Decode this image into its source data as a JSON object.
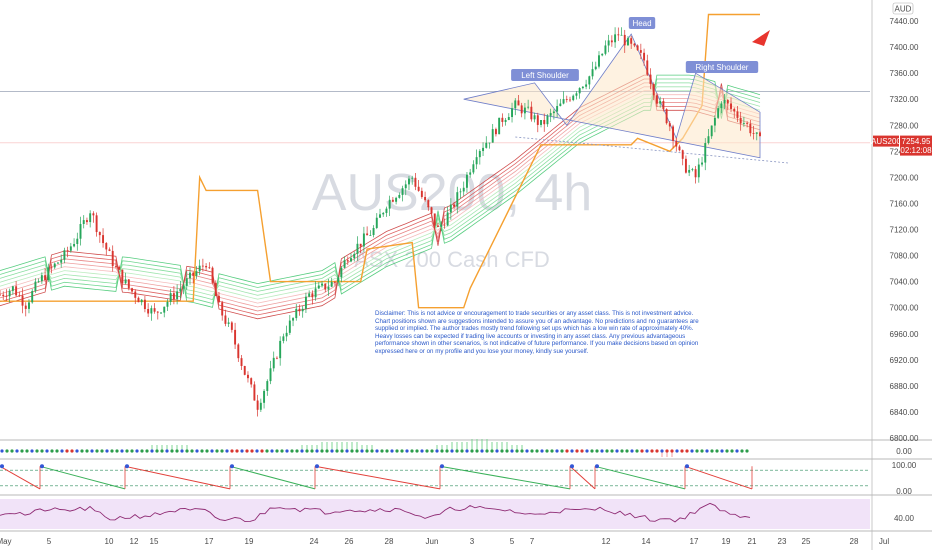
{
  "chart_data": [
    {
      "type": "candlestick",
      "symbol": "AUS200",
      "interval": "4h",
      "watermark_symbol": "AUS200, 4h",
      "watermark_name": "ASX 200 Cash CFD",
      "currency": "AUD",
      "ylim": [
        6800,
        7460
      ],
      "y_ticks": [
        "7440.00",
        "7400.00",
        "7360.00",
        "7320.00",
        "7280.00",
        "7240.00",
        "7200.00",
        "7160.00",
        "7120.00",
        "7080.00",
        "7040.00",
        "7000.00",
        "6960.00",
        "6920.00",
        "6880.00",
        "6840.00",
        "6800.00"
      ],
      "y_tick_values": [
        7440,
        7400,
        7360,
        7320,
        7280,
        7240,
        7200,
        7160,
        7120,
        7080,
        7040,
        7000,
        6960,
        6920,
        6880,
        6840,
        6800
      ],
      "x_ticks": [
        "May",
        "5",
        "10",
        "12",
        "15",
        "17",
        "19",
        "24",
        "26",
        "28",
        "Jun",
        "3",
        "5",
        "7",
        "12",
        "14",
        "17",
        "19",
        "21",
        "23",
        "25",
        "28",
        "Jul"
      ],
      "last_price": {
        "label": "AUS200",
        "value": "7254.95",
        "countdown": "02:12:08"
      },
      "pattern": {
        "name": "Head and Shoulders",
        "left_shoulder": "Left Shoulder",
        "head": "Head",
        "right_shoulder": "Right Shoulder"
      },
      "close_path": [
        [
          0,
          7020
        ],
        [
          4,
          7030
        ],
        [
          8,
          7005
        ],
        [
          12,
          7040
        ],
        [
          16,
          7060
        ],
        [
          20,
          7080
        ],
        [
          24,
          7110
        ],
        [
          28,
          7150
        ],
        [
          32,
          7100
        ],
        [
          36,
          7060
        ],
        [
          40,
          7030
        ],
        [
          44,
          7010
        ],
        [
          48,
          6990
        ],
        [
          52,
          7010
        ],
        [
          56,
          7030
        ],
        [
          60,
          7050
        ],
        [
          64,
          7070
        ],
        [
          68,
          7000
        ],
        [
          72,
          6960
        ],
        [
          76,
          6900
        ],
        [
          80,
          6850
        ],
        [
          84,
          6900
        ],
        [
          88,
          6960
        ],
        [
          92,
          6990
        ],
        [
          96,
          7020
        ],
        [
          100,
          7030
        ],
        [
          104,
          7040
        ],
        [
          108,
          7080
        ],
        [
          112,
          7100
        ],
        [
          116,
          7120
        ],
        [
          120,
          7160
        ],
        [
          124,
          7180
        ],
        [
          128,
          7200
        ],
        [
          132,
          7160
        ],
        [
          136,
          7120
        ],
        [
          140,
          7150
        ],
        [
          144,
          7190
        ],
        [
          148,
          7240
        ],
        [
          152,
          7260
        ],
        [
          156,
          7290
        ],
        [
          160,
          7310
        ],
        [
          164,
          7300
        ],
        [
          168,
          7280
        ],
        [
          172,
          7300
        ],
        [
          176,
          7320
        ],
        [
          180,
          7340
        ],
        [
          184,
          7360
        ],
        [
          188,
          7400
        ],
        [
          192,
          7420
        ],
        [
          196,
          7400
        ],
        [
          200,
          7380
        ],
        [
          204,
          7320
        ],
        [
          208,
          7280
        ],
        [
          212,
          7220
        ],
        [
          216,
          7200
        ],
        [
          220,
          7260
        ],
        [
          224,
          7320
        ],
        [
          228,
          7300
        ],
        [
          232,
          7280
        ],
        [
          236,
          7255
        ]
      ],
      "mtf_line": [
        [
          0,
          7010
        ],
        [
          60,
          7010
        ],
        [
          62,
          7200
        ],
        [
          64,
          7180
        ],
        [
          80,
          7180
        ],
        [
          84,
          7040
        ],
        [
          112,
          7040
        ],
        [
          114,
          7090
        ],
        [
          128,
          7100
        ],
        [
          130,
          7000
        ],
        [
          144,
          7000
        ],
        [
          146,
          7030
        ],
        [
          168,
          7250
        ],
        [
          196,
          7250
        ],
        [
          198,
          7260
        ],
        [
          208,
          7240
        ],
        [
          212,
          7260
        ],
        [
          218,
          7310
        ],
        [
          220,
          7450
        ],
        [
          236,
          7450
        ]
      ],
      "ribbon_center": [
        [
          0,
          7030
        ],
        [
          20,
          7060
        ],
        [
          40,
          7050
        ],
        [
          60,
          7035
        ],
        [
          80,
          7010
        ],
        [
          100,
          7030
        ],
        [
          120,
          7090
        ],
        [
          140,
          7130
        ],
        [
          160,
          7200
        ],
        [
          180,
          7280
        ],
        [
          200,
          7330
        ],
        [
          215,
          7330
        ],
        [
          236,
          7300
        ]
      ],
      "head_shoulders": [
        [
          144,
          7320
        ],
        [
          166,
          7345
        ],
        [
          176,
          7280
        ],
        [
          196,
          7420
        ],
        [
          210,
          7260
        ],
        [
          216,
          7360
        ],
        [
          236,
          7300
        ],
        [
          236,
          7230
        ]
      ]
    },
    {
      "type": "histogram",
      "name": "momentum",
      "y_ticks": [
        "0.00"
      ],
      "values": [
        1,
        1,
        0,
        -1,
        0,
        0,
        1,
        1,
        2,
        2,
        1,
        0,
        -1,
        -1,
        0,
        1,
        2,
        3,
        3,
        2,
        1,
        0,
        1,
        2,
        3,
        4,
        3,
        2,
        1,
        0,
        -1,
        0,
        1,
        0,
        -1,
        -2,
        -1,
        0,
        1,
        0
      ]
    },
    {
      "type": "line",
      "name": "stochastic",
      "y_ticks": [
        "100.00",
        "0.00"
      ],
      "ylim": [
        0,
        100
      ]
    },
    {
      "type": "line",
      "name": "rsi",
      "y_ticks": [
        "40.00"
      ],
      "ylim": [
        20,
        80
      ]
    }
  ]
}
